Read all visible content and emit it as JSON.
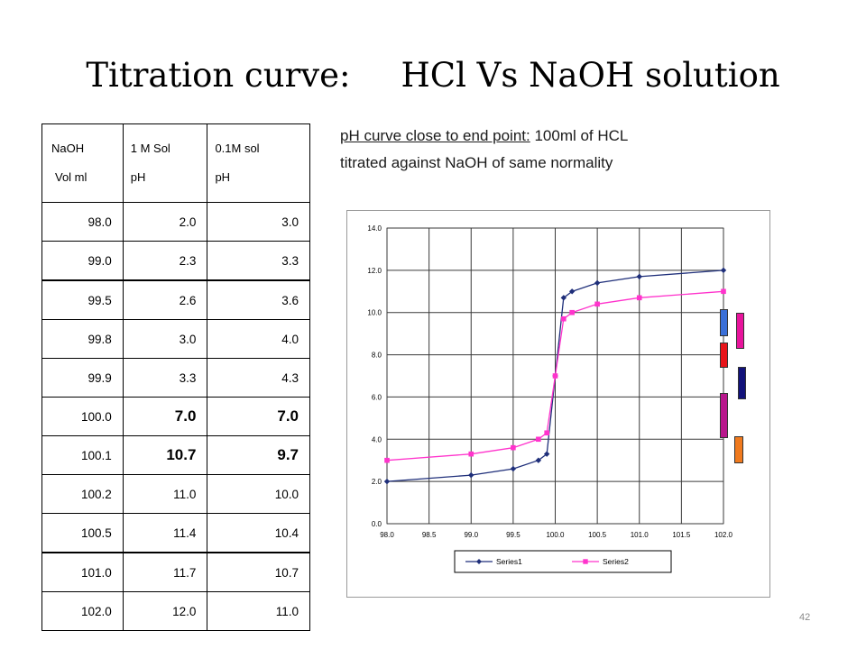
{
  "title": {
    "part1": "Titration curve:",
    "part2": "HCl Vs NaOH solution"
  },
  "table": {
    "headers": [
      [
        "NaOH",
        "Vol ml"
      ],
      [
        "1 M Sol",
        "pH"
      ],
      [
        "0.1M sol",
        "pH"
      ]
    ],
    "rows": [
      [
        "98.0",
        "2.0",
        "3.0"
      ],
      [
        "99.0",
        "2.3",
        "3.3"
      ],
      [
        "99.5",
        "2.6",
        "3.6"
      ],
      [
        "99.8",
        "3.0",
        "4.0"
      ],
      [
        "99.9",
        "3.3",
        "4.3"
      ],
      [
        "100.0",
        "7.0",
        "7.0"
      ],
      [
        "100.1",
        "10.7",
        "9.7"
      ],
      [
        "100.2",
        "11.0",
        "10.0"
      ],
      [
        "100.5",
        "11.4",
        "10.4"
      ],
      [
        "101.0",
        "11.7",
        "10.7"
      ],
      [
        "102.0",
        "12.0",
        "11.0"
      ]
    ]
  },
  "note": {
    "underlined": "pH curve close to end point:",
    "rest_line1": " 100ml of HCL",
    "line2": "titrated against NaOH of same normality"
  },
  "page_number": "42",
  "indicator_colors": [
    "#3a6fd8",
    "#e8149c",
    "#e8141a",
    "#12127a",
    "#b8168c",
    "#f07a1e"
  ],
  "chart_data": {
    "type": "line",
    "x": [
      98.0,
      99.0,
      99.5,
      99.8,
      99.9,
      100.0,
      100.1,
      100.2,
      100.5,
      101.0,
      102.0
    ],
    "series": [
      {
        "name": "Series1",
        "values": [
          2.0,
          2.3,
          2.6,
          3.0,
          3.3,
          7.0,
          10.7,
          11.0,
          11.4,
          11.7,
          12.0
        ],
        "color": "#1f2f7a",
        "marker": "diamond"
      },
      {
        "name": "Series2",
        "values": [
          3.0,
          3.3,
          3.6,
          4.0,
          4.3,
          7.0,
          9.7,
          10.0,
          10.4,
          10.7,
          11.0
        ],
        "color": "#ff33cc",
        "marker": "square"
      }
    ],
    "xlim": [
      98.0,
      102.0
    ],
    "ylim": [
      0.0,
      14.0
    ],
    "xticks": [
      "98.0",
      "98.5",
      "99.0",
      "99.5",
      "100.0",
      "100.5",
      "101.0",
      "101.5",
      "102.0"
    ],
    "yticks": [
      "0.0",
      "2.0",
      "4.0",
      "6.0",
      "8.0",
      "10.0",
      "12.0",
      "14.0"
    ],
    "grid": true,
    "legend": "bottom"
  }
}
